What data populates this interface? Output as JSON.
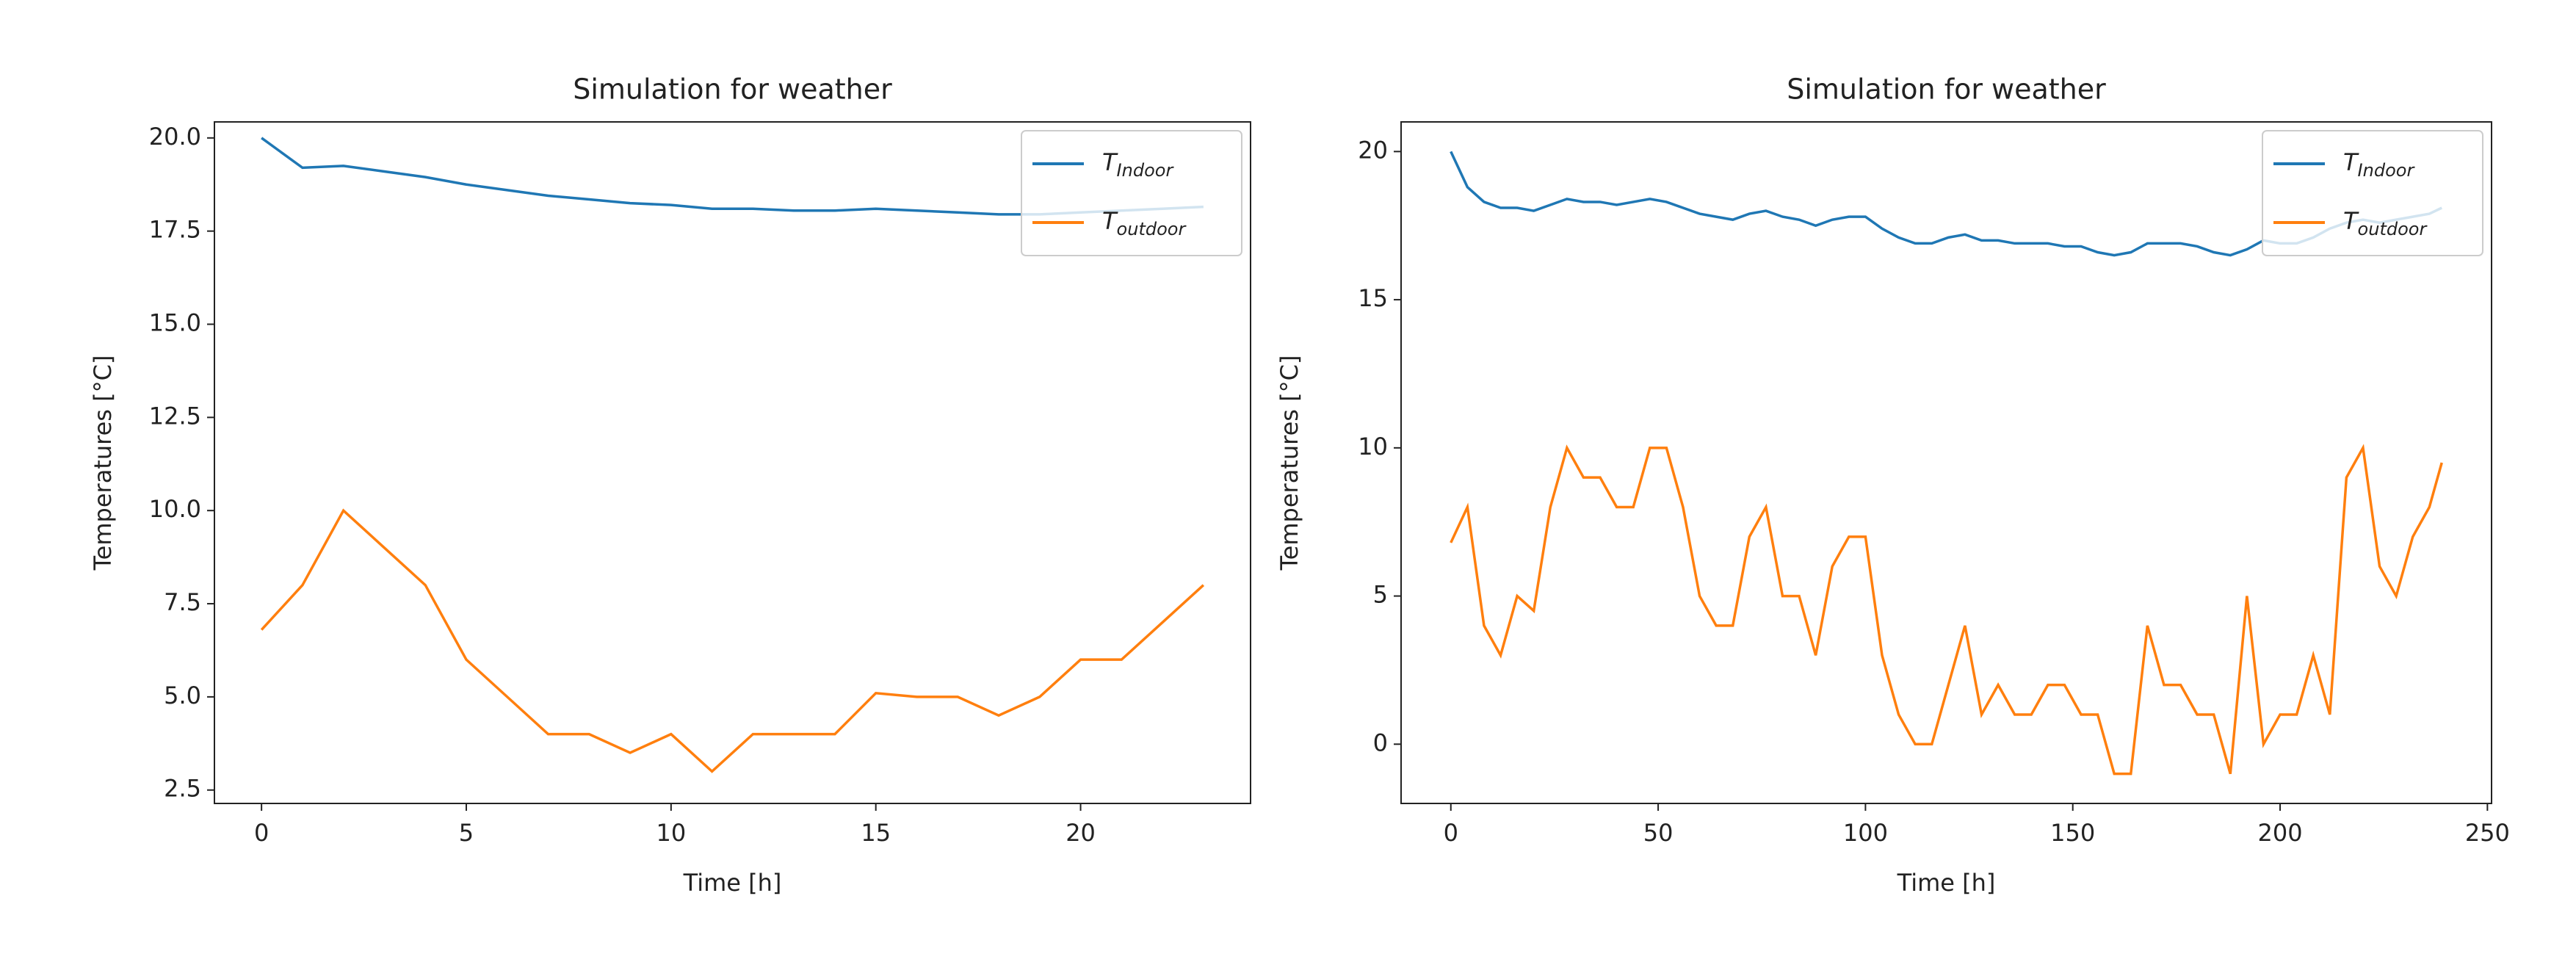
{
  "chart_data": [
    {
      "type": "line",
      "title": "Simulation for weather",
      "xlabel": "Time [h]",
      "ylabel": "Temperatures [°C]",
      "x": [
        0,
        1,
        2,
        3,
        4,
        5,
        6,
        7,
        8,
        9,
        10,
        11,
        12,
        13,
        14,
        15,
        16,
        17,
        18,
        19,
        20,
        21,
        22,
        23
      ],
      "series": [
        {
          "name": "T",
          "name_sub": "Indoor",
          "color": "#1f77b4",
          "values": [
            20.0,
            19.2,
            19.25,
            19.1,
            18.95,
            18.75,
            18.6,
            18.45,
            18.35,
            18.25,
            18.2,
            18.1,
            18.1,
            18.05,
            18.05,
            18.1,
            18.05,
            18.0,
            17.95,
            17.95,
            18.0,
            18.05,
            18.1,
            18.15
          ]
        },
        {
          "name": "T",
          "name_sub": "outdoor",
          "color": "#ff7f0e",
          "values": [
            6.8,
            8,
            10,
            9,
            8,
            6,
            5,
            4,
            4,
            3.5,
            4,
            3,
            4,
            4,
            4,
            5.1,
            5,
            5,
            4.5,
            5,
            6,
            6,
            7,
            8
          ]
        }
      ],
      "xlim": [
        -1.15,
        24.15
      ],
      "xticks": [
        0,
        5,
        10,
        15,
        20
      ],
      "ylim": [
        2.14,
        20.43
      ],
      "yticks": [
        2.5,
        {
          "value": 5,
          "label": "5.0"
        },
        7.5,
        {
          "value": 10,
          "label": "10.0"
        },
        12.5,
        {
          "value": 15,
          "label": "15.0"
        },
        17.5,
        {
          "value": 20,
          "label": "20.0"
        }
      ],
      "legend": "upper right"
    },
    {
      "type": "line",
      "title": "Simulation for weather",
      "xlabel": "Time [h]",
      "ylabel": "Temperatures [°C]",
      "x": [
        0,
        4,
        8,
        12,
        16,
        20,
        24,
        28,
        32,
        36,
        40,
        44,
        48,
        52,
        56,
        60,
        64,
        68,
        72,
        76,
        80,
        84,
        88,
        92,
        96,
        100,
        104,
        108,
        112,
        116,
        120,
        124,
        128,
        132,
        136,
        140,
        144,
        148,
        152,
        156,
        160,
        164,
        168,
        172,
        176,
        180,
        184,
        188,
        192,
        196,
        200,
        204,
        208,
        212,
        216,
        220,
        224,
        228,
        232,
        236,
        239
      ],
      "series": [
        {
          "name": "T",
          "name_sub": "Indoor",
          "color": "#1f77b4",
          "values": [
            20,
            18.8,
            18.3,
            18.1,
            18.1,
            18.0,
            18.2,
            18.4,
            18.3,
            18.3,
            18.2,
            18.3,
            18.4,
            18.3,
            18.1,
            17.9,
            17.8,
            17.7,
            17.9,
            18.0,
            17.8,
            17.7,
            17.5,
            17.7,
            17.8,
            17.8,
            17.4,
            17.1,
            16.9,
            16.9,
            17.1,
            17.2,
            17.0,
            17.0,
            16.9,
            16.9,
            16.9,
            16.8,
            16.8,
            16.6,
            16.5,
            16.6,
            16.9,
            16.9,
            16.9,
            16.8,
            16.6,
            16.5,
            16.7,
            17.0,
            16.9,
            16.9,
            17.1,
            17.4,
            17.6,
            17.7,
            17.6,
            17.7,
            17.8,
            17.9,
            18.1
          ]
        },
        {
          "name": "T",
          "name_sub": "outdoor",
          "color": "#ff7f0e",
          "values": [
            6.8,
            8,
            4,
            3,
            5,
            4.5,
            8,
            10,
            9,
            9,
            8,
            8,
            10,
            10,
            8,
            5,
            4,
            4,
            7,
            8,
            5,
            5,
            3,
            6,
            7,
            7,
            3,
            1,
            0,
            0,
            2,
            4,
            1,
            2,
            1,
            1,
            2,
            2,
            1,
            1,
            -1,
            -1,
            4,
            2,
            2,
            1,
            1,
            -1,
            5,
            0,
            1,
            1,
            3,
            1,
            9,
            10,
            6,
            5,
            7,
            8,
            9.5
          ]
        }
      ],
      "xlim": [
        -12,
        251
      ],
      "xticks": [
        0,
        50,
        100,
        150,
        200,
        250
      ],
      "ylim": [
        -2,
        21
      ],
      "yticks": [
        0,
        5,
        10,
        15,
        20
      ],
      "legend": "upper right"
    }
  ]
}
